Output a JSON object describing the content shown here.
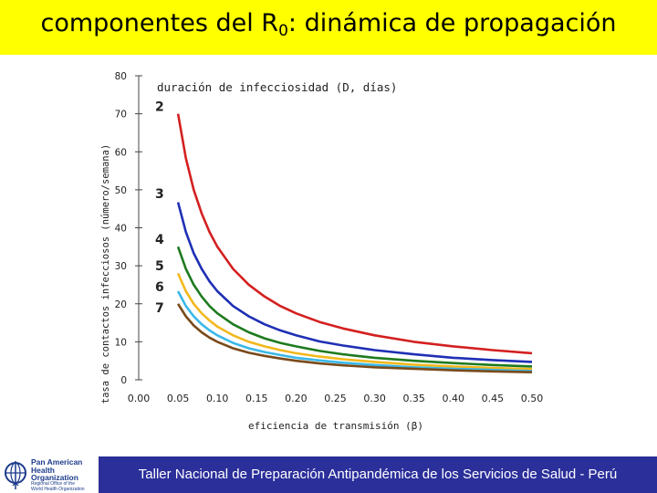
{
  "header": {
    "title_main": "componentes del R",
    "title_sub": "0",
    "title_rest": ": dinámica de propagación"
  },
  "footer": {
    "text": "Taller Nacional de Preparación Antipandémica de los Servicios de Salud - Perú",
    "logo_lines": [
      "Pan American",
      "Health",
      "Organization"
    ],
    "logo_sub_lines": [
      "Regional Office of the",
      "World Health Organization"
    ]
  },
  "colors": {
    "title_background": "#ffff00",
    "footer_background": "#2b2f9a"
  },
  "chart_data": {
    "type": "line",
    "xlabel": "eficiencia de transmisión (β)",
    "ylabel": "tasa de contactos infecciosos (número/semana)",
    "xlim": [
      0,
      0.5
    ],
    "ylim": [
      0,
      80
    ],
    "xticks": [
      0,
      0.05,
      0.1,
      0.15,
      0.2,
      0.25,
      0.3,
      0.35,
      0.4,
      0.45,
      0.5
    ],
    "xtick_labels": [
      "0.00",
      "0.05",
      "0.10",
      "0.15",
      "0.20",
      "0.25",
      "0.30",
      "0.35",
      "0.40",
      "0.45",
      "0.50"
    ],
    "yticks": [
      0,
      10,
      20,
      30,
      40,
      50,
      60,
      70,
      80
    ],
    "ytick_labels": [
      "0",
      "10",
      "20",
      "30",
      "40",
      "50",
      "60",
      "70",
      "80"
    ],
    "legend_title": "duración de infecciosidad (D, días)",
    "x": [
      0.05,
      0.06,
      0.07,
      0.08,
      0.09,
      0.1,
      0.12,
      0.14,
      0.16,
      0.18,
      0.2,
      0.23,
      0.26,
      0.3,
      0.35,
      0.4,
      0.45,
      0.5
    ],
    "series": [
      {
        "name": "2",
        "color": "#d42020",
        "values": [
          70,
          58.3,
          50,
          43.8,
          38.9,
          35,
          29.2,
          25,
          21.9,
          19.4,
          17.5,
          15.2,
          13.5,
          11.7,
          10,
          8.8,
          7.8,
          7
        ]
      },
      {
        "name": "3",
        "color": "#1f2fb5",
        "values": [
          46.7,
          38.9,
          33.3,
          29.2,
          25.9,
          23.3,
          19.4,
          16.7,
          14.6,
          13,
          11.7,
          10.1,
          9,
          7.8,
          6.7,
          5.8,
          5.2,
          4.7
        ]
      },
      {
        "name": "4",
        "color": "#1e7a1e",
        "values": [
          35,
          29.2,
          25,
          21.9,
          19.4,
          17.5,
          14.6,
          12.5,
          10.9,
          9.7,
          8.8,
          7.6,
          6.7,
          5.8,
          5,
          4.4,
          3.9,
          3.5
        ]
      },
      {
        "name": "5",
        "color": "#f2b81c",
        "values": [
          28,
          23.3,
          20,
          17.5,
          15.6,
          14,
          11.7,
          10,
          8.8,
          7.8,
          7,
          6.1,
          5.4,
          4.7,
          4,
          3.5,
          3.1,
          2.8
        ]
      },
      {
        "name": "6",
        "color": "#3ab8e8",
        "values": [
          23.3,
          19.4,
          16.7,
          14.6,
          13,
          11.7,
          9.7,
          8.3,
          7.3,
          6.5,
          5.8,
          5.1,
          4.5,
          3.9,
          3.3,
          2.9,
          2.6,
          2.3
        ]
      },
      {
        "name": "7",
        "color": "#7a4a1a",
        "values": [
          20,
          16.7,
          14.3,
          12.5,
          11.1,
          10,
          8.3,
          7.1,
          6.3,
          5.6,
          5,
          4.3,
          3.8,
          3.3,
          2.9,
          2.5,
          2.2,
          2
        ]
      }
    ],
    "label_positions_data": [
      72,
      49,
      37,
      30,
      24.5,
      19
    ],
    "grid": false,
    "legend_position": "inline-left"
  }
}
